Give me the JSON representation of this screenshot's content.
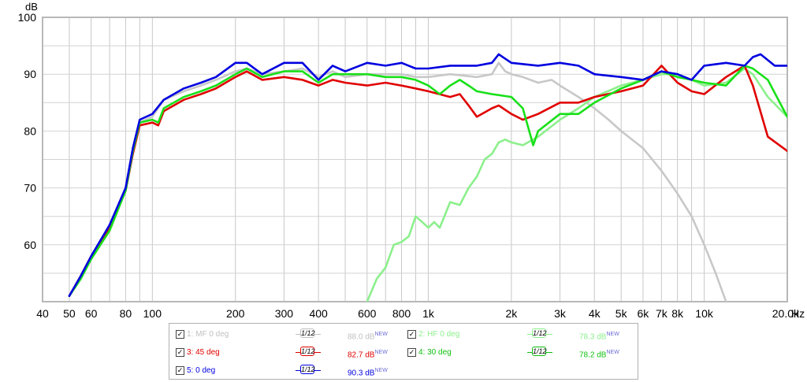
{
  "chart_data": {
    "type": "line",
    "ylabel": "dB",
    "xunit": "Hz",
    "xscale": "log",
    "xlim": [
      40,
      20000
    ],
    "ylim": [
      50,
      100
    ],
    "yticks": [
      60,
      70,
      80,
      90,
      100
    ],
    "xticks": [
      {
        "v": 40,
        "label": "40"
      },
      {
        "v": 50,
        "label": "50"
      },
      {
        "v": 60,
        "label": "60"
      },
      {
        "v": 80,
        "label": "80"
      },
      {
        "v": 100,
        "label": "100"
      },
      {
        "v": 200,
        "label": "200"
      },
      {
        "v": 300,
        "label": "300"
      },
      {
        "v": 400,
        "label": "400"
      },
      {
        "v": 600,
        "label": "600"
      },
      {
        "v": 800,
        "label": "800"
      },
      {
        "v": 1000,
        "label": "1k"
      },
      {
        "v": 2000,
        "label": "2k"
      },
      {
        "v": 3000,
        "label": "3k"
      },
      {
        "v": 4000,
        "label": "4k"
      },
      {
        "v": 5000,
        "label": "5k"
      },
      {
        "v": 6000,
        "label": "6k"
      },
      {
        "v": 7000,
        "label": "7k"
      },
      {
        "v": 8000,
        "label": "8k"
      },
      {
        "v": 10000,
        "label": "10k"
      },
      {
        "v": 20000,
        "label": "20.0k"
      }
    ],
    "grid": true,
    "series": [
      {
        "name": "1: MF 0 deg",
        "color": "#c8c8c8",
        "smoothing": "1/12",
        "level": "88.0 dB",
        "checked": true,
        "points": [
          [
            50,
            51
          ],
          [
            55,
            54.5
          ],
          [
            60,
            58
          ],
          [
            70,
            63.5
          ],
          [
            80,
            70
          ],
          [
            85,
            77
          ],
          [
            90,
            81.5
          ],
          [
            100,
            82.5
          ],
          [
            110,
            85.5
          ],
          [
            130,
            87
          ],
          [
            150,
            88
          ],
          [
            170,
            89
          ],
          [
            200,
            90.5
          ],
          [
            220,
            91
          ],
          [
            250,
            90
          ],
          [
            300,
            90.5
          ],
          [
            350,
            91
          ],
          [
            400,
            89.5
          ],
          [
            450,
            90.5
          ],
          [
            500,
            89.5
          ],
          [
            600,
            90
          ],
          [
            700,
            90
          ],
          [
            800,
            90
          ],
          [
            900,
            89.5
          ],
          [
            1000,
            89.5
          ],
          [
            1200,
            90
          ],
          [
            1500,
            89.5
          ],
          [
            1700,
            90
          ],
          [
            1800,
            92
          ],
          [
            1900,
            90.5
          ],
          [
            2000,
            90
          ],
          [
            2200,
            89.5
          ],
          [
            2500,
            88.5
          ],
          [
            2800,
            89
          ],
          [
            3000,
            88
          ],
          [
            3500,
            86
          ],
          [
            4000,
            84
          ],
          [
            4500,
            82
          ],
          [
            5000,
            80
          ],
          [
            6000,
            77
          ],
          [
            7000,
            73
          ],
          [
            8000,
            69
          ],
          [
            9000,
            65
          ],
          [
            10000,
            60
          ],
          [
            11000,
            55
          ],
          [
            12000,
            50
          ]
        ]
      },
      {
        "name": "2: HF 0 deg",
        "color": "#8cf08c",
        "smoothing": "1/12",
        "level": "78.3 dB",
        "checked": true,
        "points": [
          [
            600,
            50
          ],
          [
            650,
            54
          ],
          [
            700,
            56
          ],
          [
            750,
            60
          ],
          [
            800,
            60.5
          ],
          [
            850,
            61.5
          ],
          [
            900,
            65
          ],
          [
            950,
            64
          ],
          [
            1000,
            63
          ],
          [
            1050,
            64
          ],
          [
            1100,
            63
          ],
          [
            1200,
            67.5
          ],
          [
            1300,
            67
          ],
          [
            1400,
            70
          ],
          [
            1500,
            72
          ],
          [
            1600,
            75
          ],
          [
            1700,
            76
          ],
          [
            1800,
            78
          ],
          [
            1900,
            78.5
          ],
          [
            2000,
            78
          ],
          [
            2200,
            77.5
          ],
          [
            2500,
            79
          ],
          [
            3000,
            82
          ],
          [
            3500,
            84
          ],
          [
            4000,
            86
          ],
          [
            5000,
            88
          ],
          [
            6000,
            89
          ],
          [
            7000,
            90
          ],
          [
            8000,
            90
          ],
          [
            9000,
            89
          ],
          [
            10000,
            88
          ],
          [
            12000,
            88.5
          ],
          [
            14000,
            91
          ],
          [
            15000,
            90
          ],
          [
            17000,
            86
          ],
          [
            20000,
            82.5
          ]
        ]
      },
      {
        "name": "3: 45 deg",
        "color": "#e00000",
        "smoothing": "1/12",
        "level": "82.7 dB",
        "checked": true,
        "points": [
          [
            50,
            51
          ],
          [
            55,
            54.5
          ],
          [
            60,
            58
          ],
          [
            70,
            63
          ],
          [
            80,
            69.5
          ],
          [
            85,
            76
          ],
          [
            90,
            81
          ],
          [
            100,
            81.5
          ],
          [
            105,
            81
          ],
          [
            110,
            83.5
          ],
          [
            130,
            85.5
          ],
          [
            150,
            86.5
          ],
          [
            170,
            87.5
          ],
          [
            200,
            89.5
          ],
          [
            220,
            90.5
          ],
          [
            250,
            89
          ],
          [
            300,
            89.5
          ],
          [
            350,
            89
          ],
          [
            400,
            88
          ],
          [
            450,
            89
          ],
          [
            500,
            88.5
          ],
          [
            600,
            88
          ],
          [
            700,
            88.5
          ],
          [
            800,
            88
          ],
          [
            900,
            87.5
          ],
          [
            1000,
            87
          ],
          [
            1200,
            86
          ],
          [
            1300,
            86.5
          ],
          [
            1400,
            84.5
          ],
          [
            1500,
            82.5
          ],
          [
            1700,
            84
          ],
          [
            1800,
            84.5
          ],
          [
            2000,
            83
          ],
          [
            2200,
            82
          ],
          [
            2500,
            83
          ],
          [
            3000,
            85
          ],
          [
            3500,
            85
          ],
          [
            4000,
            86
          ],
          [
            5000,
            87
          ],
          [
            6000,
            88
          ],
          [
            7000,
            91.5
          ],
          [
            8000,
            88.5
          ],
          [
            9000,
            87
          ],
          [
            10000,
            86.5
          ],
          [
            12000,
            89.5
          ],
          [
            14000,
            91.5
          ],
          [
            15000,
            88
          ],
          [
            17000,
            79
          ],
          [
            20000,
            76.5
          ]
        ]
      },
      {
        "name": "4: 30 deg",
        "color": "#18e018",
        "smoothing": "1/12",
        "level": "78.2 dB",
        "checked": true,
        "points": [
          [
            50,
            51
          ],
          [
            55,
            54
          ],
          [
            60,
            57.5
          ],
          [
            70,
            62.5
          ],
          [
            80,
            69.5
          ],
          [
            85,
            76.5
          ],
          [
            90,
            81.5
          ],
          [
            100,
            82
          ],
          [
            105,
            81.5
          ],
          [
            110,
            84
          ],
          [
            130,
            86
          ],
          [
            150,
            87
          ],
          [
            170,
            88
          ],
          [
            200,
            90
          ],
          [
            220,
            91
          ],
          [
            250,
            89.5
          ],
          [
            300,
            90.5
          ],
          [
            350,
            90.5
          ],
          [
            400,
            88.5
          ],
          [
            450,
            90
          ],
          [
            500,
            90
          ],
          [
            600,
            90
          ],
          [
            700,
            89.5
          ],
          [
            800,
            89.5
          ],
          [
            900,
            89
          ],
          [
            1000,
            88
          ],
          [
            1100,
            86.5
          ],
          [
            1200,
            88
          ],
          [
            1300,
            89
          ],
          [
            1400,
            88
          ],
          [
            1500,
            87
          ],
          [
            1700,
            86.5
          ],
          [
            2000,
            86
          ],
          [
            2200,
            84
          ],
          [
            2400,
            77.5
          ],
          [
            2500,
            80
          ],
          [
            3000,
            83
          ],
          [
            3500,
            83
          ],
          [
            4000,
            85
          ],
          [
            5000,
            87.5
          ],
          [
            6000,
            89
          ],
          [
            7000,
            90.5
          ],
          [
            8000,
            89.5
          ],
          [
            9000,
            89
          ],
          [
            10000,
            88.5
          ],
          [
            12000,
            88
          ],
          [
            14000,
            91.5
          ],
          [
            15000,
            91
          ],
          [
            17000,
            89
          ],
          [
            20000,
            82.5
          ]
        ]
      },
      {
        "name": "5: 0 deg",
        "color": "#0000e0",
        "smoothing": "1/12",
        "level": "90.3 dB",
        "checked": true,
        "points": [
          [
            50,
            51
          ],
          [
            55,
            54.5
          ],
          [
            60,
            58
          ],
          [
            70,
            63.5
          ],
          [
            80,
            70
          ],
          [
            85,
            77
          ],
          [
            90,
            82
          ],
          [
            100,
            83
          ],
          [
            110,
            85.5
          ],
          [
            130,
            87.5
          ],
          [
            150,
            88.5
          ],
          [
            170,
            89.5
          ],
          [
            200,
            92
          ],
          [
            220,
            92
          ],
          [
            250,
            90
          ],
          [
            300,
            92
          ],
          [
            350,
            92
          ],
          [
            400,
            89
          ],
          [
            450,
            91.5
          ],
          [
            500,
            90.5
          ],
          [
            600,
            92
          ],
          [
            700,
            91.5
          ],
          [
            800,
            92
          ],
          [
            900,
            91
          ],
          [
            1000,
            91
          ],
          [
            1200,
            91.5
          ],
          [
            1500,
            91.5
          ],
          [
            1700,
            92
          ],
          [
            1800,
            93.5
          ],
          [
            2000,
            92
          ],
          [
            2500,
            91.5
          ],
          [
            3000,
            92
          ],
          [
            3500,
            91.5
          ],
          [
            4000,
            90
          ],
          [
            5000,
            89.5
          ],
          [
            6000,
            89
          ],
          [
            7000,
            90.5
          ],
          [
            8000,
            90
          ],
          [
            9000,
            89
          ],
          [
            10000,
            91.5
          ],
          [
            12000,
            92
          ],
          [
            14000,
            91.5
          ],
          [
            15000,
            93
          ],
          [
            16000,
            93.5
          ],
          [
            18000,
            91.5
          ],
          [
            20000,
            91.5
          ]
        ]
      }
    ]
  },
  "legend": [
    {
      "label": "1: MF 0 deg",
      "smooth_label": "1/12",
      "value": "88.0 dB",
      "sup": "NEW",
      "color": "#c0c0c0",
      "check": "✓"
    },
    {
      "label": "2: HF 0 deg",
      "smooth_label": "1/12",
      "value": "78.3 dB",
      "sup": "NEW",
      "color": "#8cf08c",
      "check": "✓"
    },
    {
      "label": "3: 45 deg",
      "smooth_label": "1/12",
      "value": "82.7 dB",
      "sup": "NEW",
      "color": "#e00000",
      "check": "✓"
    },
    {
      "label": "4: 30 deg",
      "smooth_label": "1/12",
      "value": "78.2 dB",
      "sup": "NEW",
      "color": "#10c010",
      "check": "✓"
    },
    {
      "label": "5: 0 deg",
      "smooth_label": "1/12",
      "value": "90.3 dB",
      "sup": "NEW",
      "color": "#0000e0",
      "check": "✓"
    }
  ]
}
